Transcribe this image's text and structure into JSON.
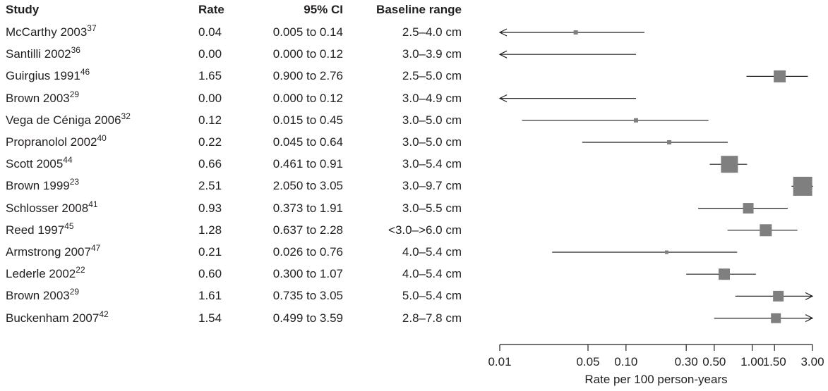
{
  "columns": {
    "study": "Study",
    "rate": "Rate",
    "ci": "95% CI",
    "range": "Baseline range"
  },
  "chart_data": {
    "type": "forest",
    "xlabel": "Rate per 100 person-years",
    "xscale": "log",
    "xlim": [
      0.01,
      3.0
    ],
    "xticks": [
      "0.01",
      "0.05",
      "0.10",
      "0.30",
      "0.50",
      "1.00",
      "1.50",
      "3.00"
    ],
    "xtick_values": [
      0.01,
      0.05,
      0.1,
      0.3,
      0.5,
      1.0,
      1.5,
      3.0
    ],
    "marker_color": "#7f7f7f",
    "line_color": "#231f20",
    "rows": [
      {
        "study": "McCarthy 2003",
        "ref": "37",
        "rate": "0.04",
        "ci": "0.005 to 0.14",
        "range": "2.5–4.0 cm",
        "est": 0.04,
        "lo": 0.005,
        "hi": 0.14,
        "weight": 0.05
      },
      {
        "study": "Santilli 2002",
        "ref": "36",
        "rate": "0.00",
        "ci": "0.000 to 0.12",
        "range": "3.0–3.9 cm",
        "est": 0.0,
        "lo": 0.0,
        "hi": 0.12,
        "weight": 0
      },
      {
        "study": "Guirgius 1991",
        "ref": "46",
        "rate": "1.65",
        "ci": "0.900 to 2.76",
        "range": "2.5–5.0 cm",
        "est": 1.65,
        "lo": 0.9,
        "hi": 2.76,
        "weight": 0.4
      },
      {
        "study": "Brown 2003",
        "ref": "29",
        "rate": "0.00",
        "ci": "0.000 to 0.12",
        "range": "3.0–4.9 cm",
        "est": 0.0,
        "lo": 0.0,
        "hi": 0.12,
        "weight": 0
      },
      {
        "study": "Vega de Céniga 2006",
        "ref": "32",
        "rate": "0.12",
        "ci": "0.015 to 0.45",
        "range": "3.0–5.0 cm",
        "est": 0.12,
        "lo": 0.015,
        "hi": 0.45,
        "weight": 0.05
      },
      {
        "study": "Propranolol 2002",
        "ref": "40",
        "rate": "0.22",
        "ci": "0.045 to 0.64",
        "range": "3.0–5.0 cm",
        "est": 0.22,
        "lo": 0.045,
        "hi": 0.64,
        "weight": 0.05
      },
      {
        "study": "Scott 2005",
        "ref": "44",
        "rate": "0.66",
        "ci": "0.461 to 0.91",
        "range": "3.0–5.4 cm",
        "est": 0.66,
        "lo": 0.461,
        "hi": 0.91,
        "weight": 0.8
      },
      {
        "study": "Brown 1999",
        "ref": "23",
        "rate": "2.51",
        "ci": "2.050 to 3.05",
        "range": "3.0–9.7 cm",
        "est": 2.51,
        "lo": 2.05,
        "hi": 3.05,
        "weight": 1.0
      },
      {
        "study": "Schlosser 2008",
        "ref": "41",
        "rate": "0.93",
        "ci": "0.373 to 1.91",
        "range": "3.0–5.5 cm",
        "est": 0.93,
        "lo": 0.373,
        "hi": 1.91,
        "weight": 0.3
      },
      {
        "study": "Reed 1997",
        "ref": "45",
        "rate": "1.28",
        "ci": "0.637 to 2.28",
        "range": "<3.0–>6.0 cm",
        "est": 1.28,
        "lo": 0.637,
        "hi": 2.28,
        "weight": 0.4
      },
      {
        "study": "Armstrong 2007",
        "ref": "47",
        "rate": "0.21",
        "ci": "0.026 to 0.76",
        "range": "4.0–5.4 cm",
        "est": 0.21,
        "lo": 0.026,
        "hi": 0.76,
        "weight": 0.03
      },
      {
        "study": "Lederle 2002",
        "ref": "22",
        "rate": "0.60",
        "ci": "0.300 to 1.07",
        "range": "4.0–5.4 cm",
        "est": 0.6,
        "lo": 0.3,
        "hi": 1.07,
        "weight": 0.35
      },
      {
        "study": "Brown 2003",
        "ref": "29",
        "rate": "1.61",
        "ci": "0.735 to 3.05",
        "range": "5.0–5.4 cm",
        "est": 1.61,
        "lo": 0.735,
        "hi": 3.05,
        "weight": 0.3
      },
      {
        "study": "Buckenham 2007",
        "ref": "42",
        "rate": "1.54",
        "ci": "0.499 to 3.59",
        "range": "2.8–7.8 cm",
        "est": 1.54,
        "lo": 0.499,
        "hi": 3.59,
        "weight": 0.25
      }
    ]
  }
}
